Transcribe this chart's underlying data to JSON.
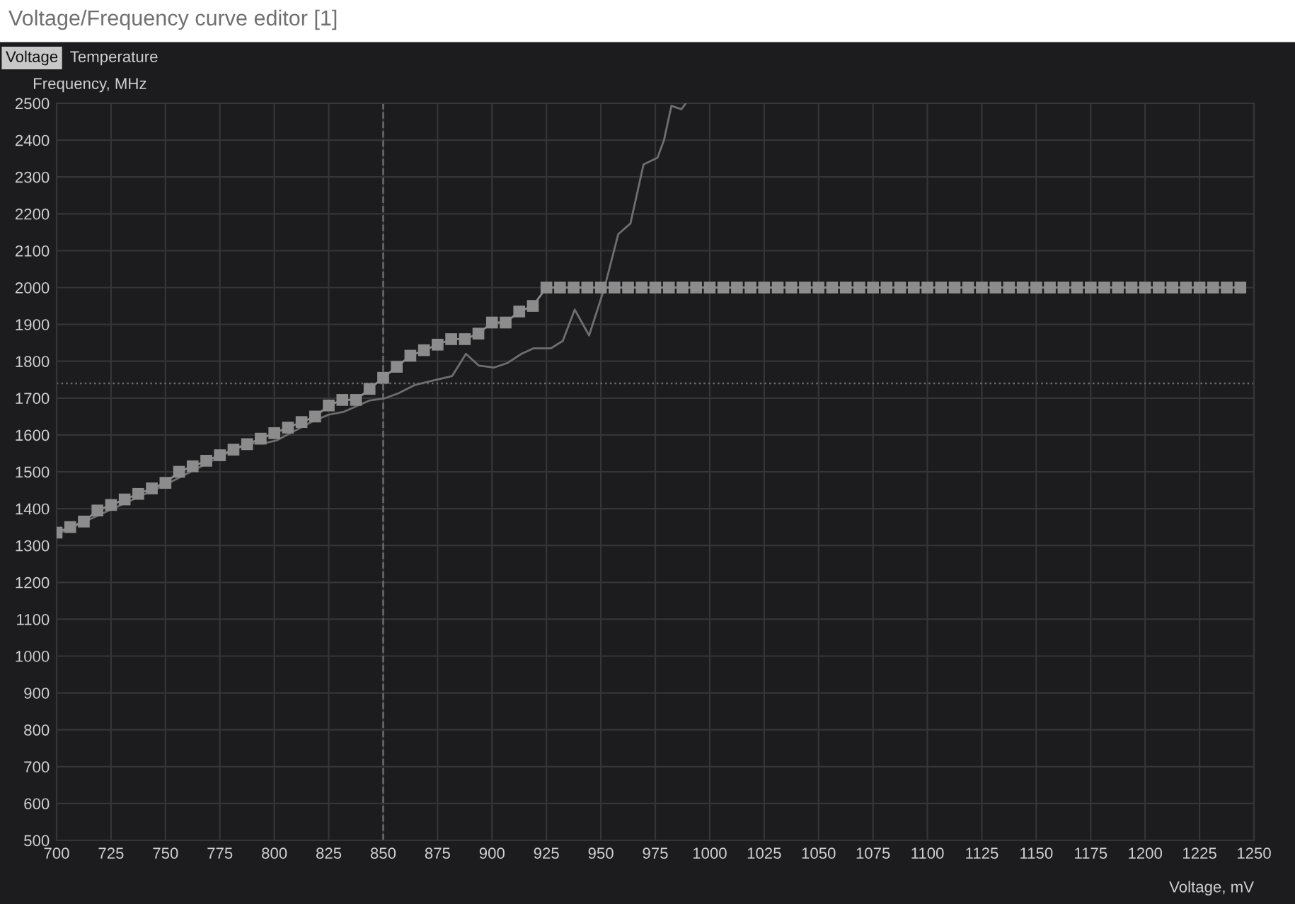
{
  "chart_data": {
    "type": "line",
    "title": "Voltage/Frequency curve editor [1]",
    "annotations": [
      "Voltage",
      "Temperature"
    ],
    "xlabel": "Voltage, mV",
    "ylabel": "Frequency, MHz",
    "xlim": [
      700,
      1250
    ],
    "xticks": [
      700,
      725,
      750,
      775,
      800,
      825,
      850,
      875,
      900,
      925,
      950,
      975,
      1000,
      1025,
      1050,
      1075,
      1100,
      1125,
      1150,
      1175,
      1200,
      1225,
      1250
    ],
    "ylim": [
      500,
      2500
    ],
    "yticks": [
      500,
      600,
      700,
      800,
      900,
      1000,
      1100,
      1200,
      1300,
      1400,
      1500,
      1600,
      1700,
      1800,
      1900,
      2000,
      2100,
      2200,
      2300,
      2400,
      2500
    ],
    "grid": true,
    "legend": false,
    "ref_lines": [
      {
        "axis": "y",
        "value": 1740,
        "label": null,
        "color": "#6a6a6a",
        "line_style": "dotted"
      },
      {
        "axis": "x",
        "value": 850,
        "label": null,
        "color": "#6a6a6a",
        "line_style": "dashed"
      }
    ],
    "series": [
      {
        "color": "#6e6e6e",
        "marker": "none",
        "x": [
          700,
          750,
          787,
          795,
          801,
          818,
          825,
          832,
          843.5,
          851,
          857,
          864.7,
          871,
          881.7,
          888,
          894,
          901,
          907,
          913.5,
          919,
          927,
          932.5,
          938,
          944.6,
          951.6,
          958,
          963.6,
          969.6,
          976,
          979,
          982.4,
          987,
          989
        ],
        "values": [
          1330,
          1465,
          1577,
          1577,
          1585,
          1638,
          1655,
          1663,
          1693,
          1700,
          1713,
          1736,
          1745,
          1760,
          1820,
          1788,
          1783,
          1795,
          1820,
          1835,
          1835,
          1855,
          1940,
          1870,
          1998,
          2145,
          2174,
          2334,
          2352,
          2400,
          2493,
          2484,
          2500
        ]
      },
      {
        "color": "#8c8c8c",
        "marker": "square",
        "x": [
          700,
          706.25,
          712.5,
          718.75,
          725,
          731.25,
          737.5,
          743.75,
          750,
          756.25,
          762.5,
          768.75,
          775,
          781.25,
          787.5,
          793.75,
          800,
          806.25,
          812.5,
          818.75,
          825,
          831.25,
          837.5,
          843.75,
          850,
          856.25,
          862.5,
          868.75,
          875,
          881.25,
          887.5,
          893.75,
          900,
          906.25,
          912.5,
          918.75,
          925,
          931.25,
          937.5,
          943.75,
          950,
          956.25,
          962.5,
          968.75,
          975,
          981.25,
          987.5,
          993.75,
          1000,
          1006.25,
          1012.5,
          1018.75,
          1025,
          1031.25,
          1037.5,
          1043.75,
          1050,
          1056.25,
          1062.5,
          1068.75,
          1075,
          1081.25,
          1087.5,
          1093.75,
          1100,
          1106.25,
          1112.5,
          1118.75,
          1125,
          1131.25,
          1137.5,
          1143.75,
          1150,
          1156.25,
          1162.5,
          1168.75,
          1175,
          1181.25,
          1187.5,
          1193.75,
          1200,
          1206.25,
          1212.5,
          1218.75,
          1225,
          1231.25,
          1237.5,
          1243.75
        ],
        "values": [
          1335,
          1350,
          1365,
          1395,
          1410,
          1425,
          1440,
          1455,
          1470,
          1500,
          1515,
          1530,
          1545,
          1560,
          1575,
          1590,
          1605,
          1620,
          1635,
          1650,
          1680,
          1695,
          1695,
          1725,
          1755,
          1785,
          1815,
          1830,
          1845,
          1860,
          1860,
          1875,
          1905,
          1905,
          1935,
          1950,
          2000,
          2000,
          2000,
          2000,
          2000,
          2000,
          2000,
          2000,
          2000,
          2000,
          2000,
          2000,
          2000,
          2000,
          2000,
          2000,
          2000,
          2000,
          2000,
          2000,
          2000,
          2000,
          2000,
          2000,
          2000,
          2000,
          2000,
          2000,
          2000,
          2000,
          2000,
          2000,
          2000,
          2000,
          2000,
          2000,
          2000,
          2000,
          2000,
          2000,
          2000,
          2000,
          2000,
          2000,
          2000,
          2000,
          2000,
          2000,
          2000,
          2000,
          2000,
          2000
        ]
      }
    ]
  }
}
